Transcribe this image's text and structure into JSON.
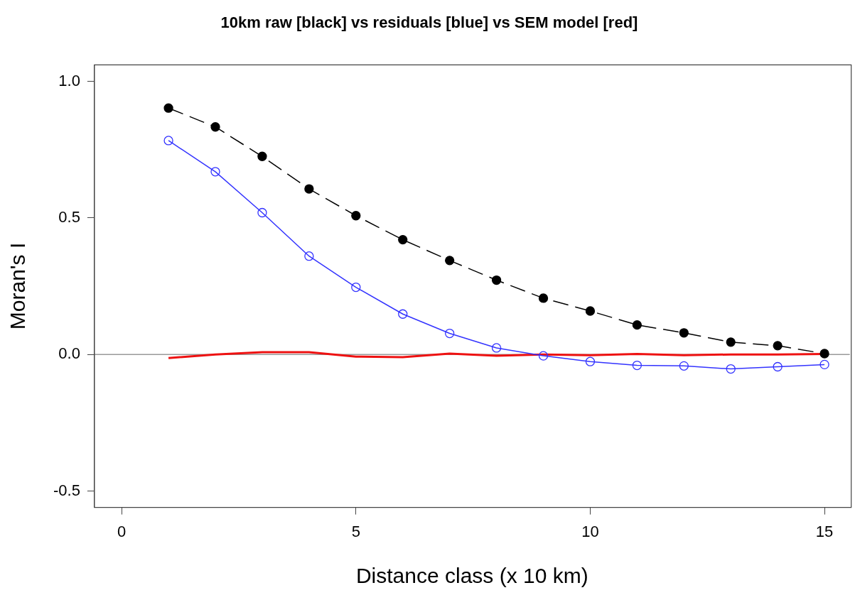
{
  "chart_data": {
    "type": "line",
    "title": "10km raw [black] vs residuals [blue] vs SEM model [red]",
    "xlabel": "Distance class (x 10 km)",
    "ylabel": "Moran's I",
    "x": [
      1,
      2,
      3,
      4,
      5,
      6,
      7,
      8,
      9,
      10,
      11,
      12,
      13,
      14,
      15
    ],
    "series": [
      {
        "color": "#000000",
        "marker": "circle",
        "line_style": "dashed",
        "values": [
          0.902,
          0.833,
          0.725,
          0.606,
          0.508,
          0.42,
          0.344,
          0.272,
          0.206,
          0.159,
          0.108,
          0.079,
          0.045,
          0.032,
          0.003
        ]
      },
      {
        "color": "#3333ff",
        "marker": "circle",
        "line_style": "solid",
        "values": [
          0.783,
          0.669,
          0.519,
          0.36,
          0.246,
          0.148,
          0.077,
          0.024,
          -0.005,
          -0.026,
          -0.04,
          -0.042,
          -0.053,
          -0.045,
          -0.037
        ]
      },
      {
        "color": "#ee1111",
        "marker": "none",
        "line_style": "solid",
        "values": [
          -0.013,
          0,
          0.008,
          0.008,
          -0.008,
          -0.01,
          0.003,
          -0.005,
          0,
          -0.003,
          0.002,
          -0.003,
          0,
          0,
          0.002
        ]
      }
    ],
    "xlim": [
      -0.58,
      15.54
    ],
    "xticks": [
      0,
      5,
      10,
      15
    ],
    "ylim": [
      -0.56,
      1.06
    ],
    "yticks": [
      {
        "value": -0.5,
        "label": "-0.5"
      },
      {
        "value": 0,
        "label": "0.0"
      },
      {
        "value": 0.5,
        "label": "0.5"
      },
      {
        "value": 1,
        "label": "1.0"
      }
    ],
    "ref_lines": [
      {
        "axis": "y",
        "value": 0,
        "color": "#999999"
      }
    ],
    "grid": false,
    "legend": false
  }
}
